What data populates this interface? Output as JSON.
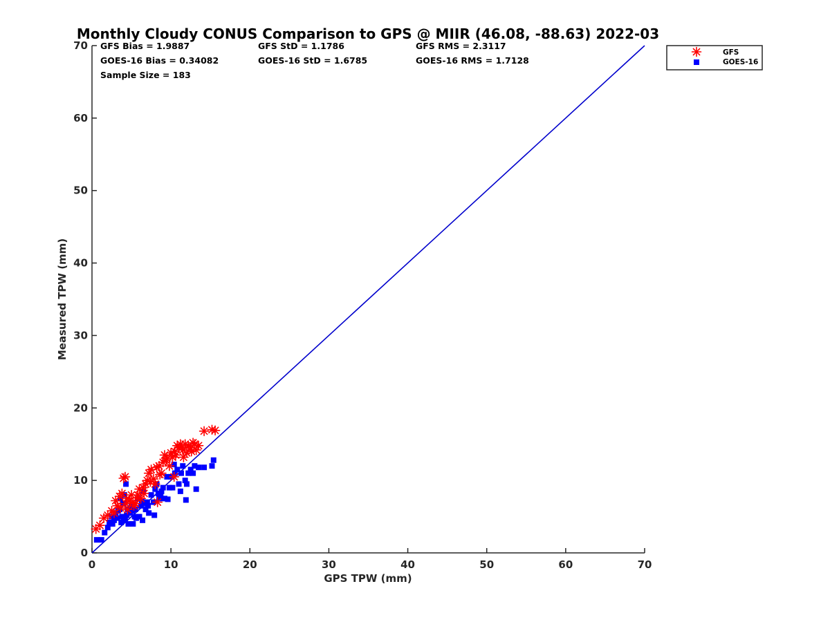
{
  "chart_data": {
    "type": "scatter",
    "title": "Monthly Cloudy CONUS Comparison to GPS @ MIIR (46.08, -88.63) 2022-03",
    "xlabel": "GPS TPW (mm)",
    "ylabel": "Measured TPW (mm)",
    "xlim": [
      0,
      70
    ],
    "ylim": [
      0,
      70
    ],
    "xticks": [
      "0",
      "10",
      "20",
      "30",
      "40",
      "50",
      "60",
      "70"
    ],
    "yticks": [
      "0",
      "10",
      "20",
      "30",
      "40",
      "50",
      "60",
      "70"
    ],
    "grid": false,
    "legend_position": "top-right",
    "stats": [
      "GFS Bias = 1.9887",
      "GFS StD = 1.1786",
      "GFS RMS = 2.3117",
      "GOES-16 Bias = 0.34082",
      "GOES-16 StD = 1.6785",
      "GOES-16 RMS = 1.7128",
      "Sample Size = 183"
    ],
    "reference_line": {
      "x": [
        0,
        70
      ],
      "y": [
        0,
        70
      ],
      "color": "#0000cc"
    },
    "series": [
      {
        "name": "GFS",
        "marker": "asterisk",
        "color": "#ff0000",
        "x": [
          0.5,
          1.0,
          1.5,
          2.0,
          2.5,
          3.0,
          3.2,
          3.5,
          3.8,
          4.0,
          4.2,
          4.4,
          4.5,
          4.8,
          5.0,
          5.2,
          5.5,
          5.8,
          6.0,
          6.2,
          6.5,
          6.8,
          7.0,
          7.2,
          7.5,
          7.8,
          8.0,
          8.2,
          8.5,
          8.8,
          9.0,
          9.2,
          9.5,
          9.8,
          10.0,
          10.2,
          10.5,
          10.8,
          11.0,
          11.2,
          11.5,
          11.8,
          12.0,
          12.2,
          12.5,
          12.8,
          13.0,
          13.2,
          13.5,
          14.2,
          15.2,
          15.6,
          2.8,
          3.6,
          5.3,
          6.6,
          7.4,
          8.6,
          9.4,
          10.6,
          11.4,
          12.6,
          4.3,
          5.7,
          8.3,
          10.4,
          11.6
        ],
        "y": [
          3.3,
          3.8,
          4.8,
          5.2,
          5.8,
          7.2,
          6.5,
          7.8,
          8.2,
          10.3,
          10.5,
          7.5,
          6.0,
          7.2,
          8.0,
          7.0,
          6.8,
          8.0,
          8.8,
          7.5,
          9.0,
          9.5,
          10.0,
          11.0,
          11.5,
          10.2,
          9.5,
          11.8,
          12.0,
          11.0,
          12.5,
          13.5,
          13.0,
          12.0,
          13.8,
          13.2,
          14.0,
          14.8,
          14.5,
          15.0,
          14.2,
          15.0,
          13.8,
          14.8,
          14.5,
          15.2,
          15.0,
          14.2,
          14.8,
          16.8,
          17.0,
          16.9,
          5.5,
          6.2,
          6.5,
          8.2,
          9.8,
          10.8,
          12.8,
          13.5,
          14.6,
          14.0,
          6.8,
          7.6,
          7.0,
          10.5,
          13.2
        ]
      },
      {
        "name": "GOES-16",
        "marker": "square",
        "color": "#0000ff",
        "x": [
          0.6,
          1.2,
          1.6,
          2.0,
          2.2,
          2.5,
          2.8,
          3.0,
          3.2,
          3.5,
          3.6,
          3.8,
          4.0,
          4.1,
          4.3,
          4.5,
          4.6,
          4.8,
          5.0,
          5.2,
          5.4,
          5.5,
          5.8,
          6.0,
          6.2,
          6.4,
          6.5,
          6.8,
          7.0,
          7.2,
          7.5,
          7.8,
          8.0,
          8.2,
          8.5,
          8.8,
          9.0,
          9.2,
          9.5,
          9.8,
          10.0,
          10.2,
          10.5,
          10.8,
          11.0,
          11.2,
          11.5,
          11.8,
          12.0,
          12.2,
          12.5,
          12.8,
          13.0,
          13.2,
          13.5,
          14.2,
          15.2,
          15.4,
          3.3,
          3.9,
          4.4,
          4.9,
          5.6,
          6.3,
          7.1,
          7.9,
          8.7,
          9.6,
          10.4,
          11.3,
          11.9,
          3.7,
          5.1,
          6.7,
          8.4,
          2.6,
          4.2
        ],
        "y": [
          1.8,
          1.8,
          2.8,
          3.5,
          4.2,
          5.0,
          4.5,
          5.5,
          4.8,
          6.0,
          7.5,
          5.0,
          4.5,
          8.0,
          9.5,
          6.0,
          4.0,
          5.5,
          6.5,
          4.0,
          5.0,
          6.0,
          7.5,
          5.0,
          6.5,
          4.5,
          8.5,
          6.0,
          7.0,
          5.5,
          8.0,
          7.0,
          8.8,
          9.5,
          7.5,
          8.5,
          9.0,
          7.5,
          10.5,
          9.0,
          10.5,
          9.0,
          11.0,
          11.5,
          9.5,
          8.5,
          12.0,
          10.0,
          9.5,
          11.0,
          11.5,
          11.0,
          12.0,
          8.8,
          11.8,
          11.8,
          12.0,
          12.8,
          5.8,
          6.8,
          5.2,
          6.2,
          4.8,
          7.2,
          6.5,
          5.2,
          7.8,
          7.4,
          12.2,
          11.0,
          7.3,
          4.2,
          5.8,
          6.8,
          8.2,
          4.0,
          4.6
        ]
      }
    ]
  }
}
